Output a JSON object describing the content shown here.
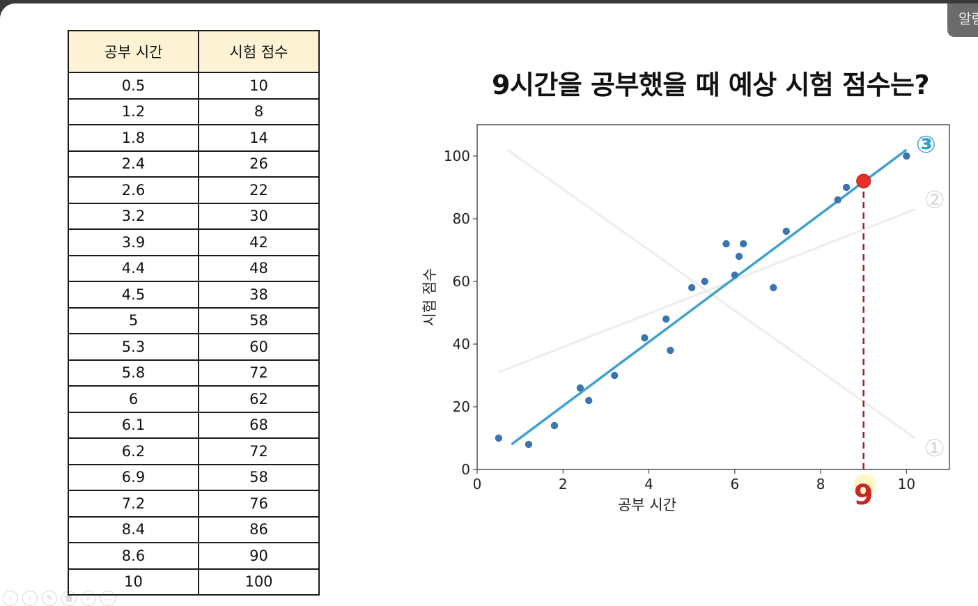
{
  "top_right_label": "알림",
  "table": {
    "headers": [
      "공부 시간",
      "시험 점수"
    ],
    "rows": [
      [
        "0.5",
        "10"
      ],
      [
        "1.2",
        "8"
      ],
      [
        "1.8",
        "14"
      ],
      [
        "2.4",
        "26"
      ],
      [
        "2.6",
        "22"
      ],
      [
        "3.2",
        "30"
      ],
      [
        "3.9",
        "42"
      ],
      [
        "4.4",
        "48"
      ],
      [
        "4.5",
        "38"
      ],
      [
        "5",
        "58"
      ],
      [
        "5.3",
        "60"
      ],
      [
        "5.8",
        "72"
      ],
      [
        "6",
        "62"
      ],
      [
        "6.1",
        "68"
      ],
      [
        "6.2",
        "72"
      ],
      [
        "6.9",
        "58"
      ],
      [
        "7.2",
        "76"
      ],
      [
        "8.4",
        "86"
      ],
      [
        "8.6",
        "90"
      ],
      [
        "10",
        "100"
      ]
    ]
  },
  "title": "9시간을 공부했을 때 예상 시험 점수는?",
  "chart_data": {
    "type": "scatter",
    "title": "9시간을 공부했을 때 예상 시험 점수는?",
    "xlabel": "공부 시간",
    "ylabel": "시험 점수",
    "xlim": [
      0,
      11
    ],
    "ylim": [
      0,
      110
    ],
    "xticks": [
      0,
      2,
      4,
      6,
      8,
      10
    ],
    "yticks": [
      0,
      20,
      40,
      60,
      80,
      100
    ],
    "grid": false,
    "points": {
      "x": [
        0.5,
        1.2,
        1.8,
        2.4,
        2.6,
        3.2,
        3.9,
        4.4,
        4.5,
        5,
        5.3,
        5.8,
        6,
        6.1,
        6.2,
        6.9,
        7.2,
        8.4,
        8.6,
        10
      ],
      "y": [
        10,
        8,
        14,
        26,
        22,
        30,
        42,
        48,
        38,
        58,
        60,
        72,
        62,
        68,
        72,
        58,
        76,
        86,
        90,
        100
      ],
      "color": "#3a75b0"
    },
    "lines": [
      {
        "label": "①",
        "x": [
          0.7,
          10.2
        ],
        "y": [
          102,
          10
        ],
        "color": "#ececec"
      },
      {
        "label": "②",
        "x": [
          0.5,
          10.2
        ],
        "y": [
          31,
          83
        ],
        "color": "#ececec"
      },
      {
        "label": "③",
        "x": [
          0.8,
          10.0
        ],
        "y": [
          8,
          102
        ],
        "color": "#3fa0cf"
      }
    ],
    "prediction": {
      "x": 9,
      "y": 92,
      "label": "9",
      "point_color": "#e8302a",
      "guide_color": "#9e1f1f"
    }
  }
}
